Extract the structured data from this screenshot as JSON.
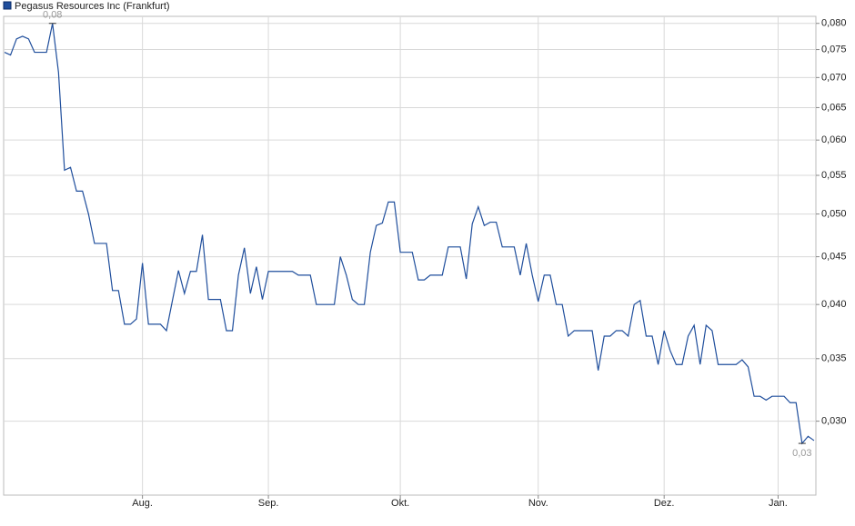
{
  "chart_data": {
    "type": "line",
    "log_scale": true,
    "grid": true,
    "legend": "top-left",
    "categories": [
      null,
      null,
      null,
      null,
      null,
      null,
      null,
      null,
      null,
      null,
      null,
      null,
      null,
      null,
      null,
      null,
      null,
      null,
      null,
      null,
      null,
      null,
      null,
      "Aug.",
      null,
      null,
      null,
      null,
      null,
      null,
      null,
      null,
      null,
      null,
      null,
      null,
      null,
      null,
      null,
      null,
      null,
      null,
      null,
      null,
      "Sep.",
      null,
      null,
      null,
      null,
      null,
      null,
      null,
      null,
      null,
      null,
      null,
      null,
      null,
      null,
      null,
      null,
      null,
      null,
      null,
      null,
      null,
      "Okt.",
      null,
      null,
      null,
      null,
      null,
      null,
      null,
      null,
      null,
      null,
      null,
      null,
      null,
      null,
      null,
      null,
      null,
      null,
      null,
      null,
      null,
      null,
      "Nov.",
      null,
      null,
      null,
      null,
      null,
      null,
      null,
      null,
      null,
      null,
      null,
      null,
      null,
      null,
      null,
      null,
      null,
      null,
      null,
      null,
      "Dez.",
      null,
      null,
      null,
      null,
      null,
      null,
      null,
      null,
      null,
      null,
      null,
      null,
      null,
      null,
      null,
      null,
      null,
      null,
      "Jan.",
      null,
      null,
      null,
      null,
      null,
      null
    ],
    "series": [
      {
        "name": "Pegasus Resources Inc (Frankfurt)",
        "color": "#1f4e9c",
        "values": [
          0.0745,
          0.074,
          0.077,
          0.0775,
          0.077,
          0.0745,
          0.0745,
          0.0745,
          0.08,
          0.0709,
          0.0557,
          0.0561,
          0.0529,
          0.0529,
          0.05,
          0.0465,
          0.0465,
          0.0465,
          0.0414,
          0.0414,
          0.0381,
          0.0381,
          0.0386,
          0.0443,
          0.0381,
          0.0381,
          0.0381,
          0.0375,
          0.0404,
          0.0435,
          0.0411,
          0.0434,
          0.0434,
          0.0475,
          0.0405,
          0.0405,
          0.0405,
          0.0375,
          0.0375,
          0.043,
          0.046,
          0.0411,
          0.0439,
          0.0405,
          0.0434,
          0.0434,
          0.0434,
          0.0434,
          0.0434,
          0.043,
          0.043,
          0.043,
          0.04,
          0.04,
          0.04,
          0.04,
          0.045,
          0.043,
          0.0405,
          0.04,
          0.04,
          0.0455,
          0.0486,
          0.0489,
          0.0515,
          0.0515,
          0.0455,
          0.0455,
          0.0455,
          0.0425,
          0.0425,
          0.043,
          0.043,
          0.043,
          0.0461,
          0.0461,
          0.0461,
          0.0426,
          0.0488,
          0.0509,
          0.0486,
          0.049,
          0.049,
          0.0461,
          0.0461,
          0.0461,
          0.043,
          0.0465,
          0.043,
          0.0403,
          0.043,
          0.043,
          0.04,
          0.04,
          0.037,
          0.0375,
          0.0375,
          0.0375,
          0.0375,
          0.034,
          0.037,
          0.037,
          0.0375,
          0.0375,
          0.037,
          0.04,
          0.0404,
          0.037,
          0.037,
          0.0345,
          0.0375,
          0.0357,
          0.0345,
          0.0345,
          0.037,
          0.038,
          0.0345,
          0.038,
          0.0375,
          0.0345,
          0.0345,
          0.0345,
          0.0345,
          0.0349,
          0.0343,
          0.0319,
          0.0319,
          0.0316,
          0.0319,
          0.0319,
          0.0319,
          0.0314,
          0.0314,
          0.0284,
          0.0289,
          0.0286
        ]
      }
    ],
    "annotations": [
      {
        "value": 0.08,
        "label": "0,08"
      },
      {
        "value": 0.0284,
        "label": "0,03"
      }
    ],
    "ylim": [
      0.025,
      0.0814
    ],
    "yticks": [
      {
        "value": 0.03,
        "label": "0,030"
      },
      {
        "value": 0.035,
        "label": "0,035"
      },
      {
        "value": 0.04,
        "label": "0,040"
      },
      {
        "value": 0.045,
        "label": "0,045"
      },
      {
        "value": 0.05,
        "label": "0,050"
      },
      {
        "value": 0.055,
        "label": "0,055"
      },
      {
        "value": 0.06,
        "label": "0,060"
      },
      {
        "value": 0.065,
        "label": "0,065"
      },
      {
        "value": 0.07,
        "label": "0,070"
      },
      {
        "value": 0.075,
        "label": "0,075"
      },
      {
        "value": 0.08,
        "label": "0,080"
      }
    ]
  }
}
